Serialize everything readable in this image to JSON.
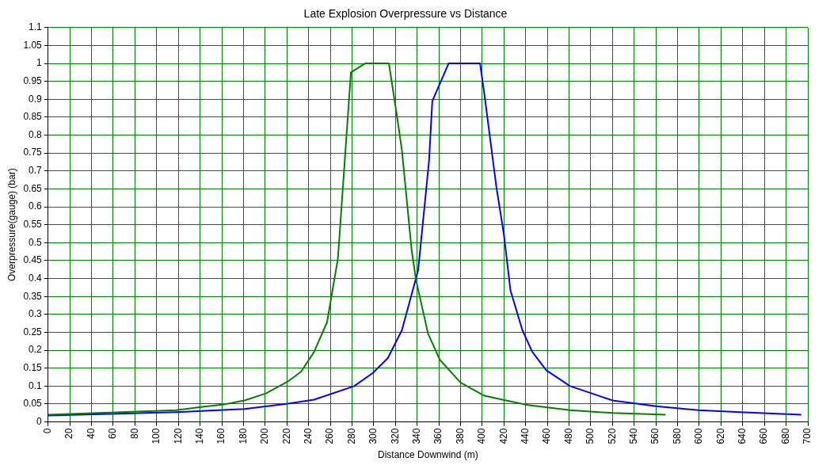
{
  "chart_data": {
    "type": "line",
    "title": "Late Explosion Overpressure vs Distance",
    "xlabel": "Distance Downwind (m)",
    "ylabel": "Overpressure(gauge) (bar)",
    "xlim": [
      0,
      700
    ],
    "xticks": [
      0,
      20,
      40,
      60,
      80,
      100,
      120,
      140,
      160,
      180,
      200,
      220,
      240,
      260,
      280,
      300,
      320,
      340,
      360,
      380,
      400,
      420,
      440,
      460,
      480,
      500,
      520,
      540,
      560,
      580,
      600,
      620,
      640,
      660,
      680,
      700
    ],
    "ylim": [
      0,
      1.1
    ],
    "yticks": [
      0,
      0.05,
      0.1,
      0.15,
      0.2,
      0.25,
      0.3,
      0.35,
      0.4,
      0.45,
      0.5,
      0.55,
      0.6,
      0.65,
      0.7,
      0.75,
      0.8,
      0.85,
      0.9,
      0.95,
      1,
      1.05,
      1.1
    ],
    "grid": true,
    "legend": false,
    "marker": "none",
    "line_style": "solid",
    "series": [
      {
        "color": "#008000",
        "x": [
          0,
          118,
          162,
          181,
          201,
          221,
          233,
          245,
          257,
          267,
          279,
          292,
          314,
          321,
          326,
          335,
          339,
          350,
          361,
          380,
          402,
          422,
          442,
          481,
          520,
          569
        ],
        "values": [
          0.02,
          0.033,
          0.049,
          0.06,
          0.08,
          0.113,
          0.14,
          0.195,
          0.278,
          0.455,
          0.975,
          1.0,
          1.0,
          0.862,
          0.758,
          0.478,
          0.396,
          0.247,
          0.173,
          0.11,
          0.073,
          0.06,
          0.047,
          0.033,
          0.025,
          0.02
        ]
      },
      {
        "color": "#0000ff",
        "x": [
          0,
          118,
          181,
          221,
          245,
          282,
          299,
          313,
          326,
          341,
          351,
          354,
          369,
          398,
          402,
          413,
          420,
          426,
          437,
          446,
          459,
          481,
          520,
          560,
          599,
          638,
          694
        ],
        "values": [
          0.018,
          0.027,
          0.036,
          0.051,
          0.062,
          0.1,
          0.136,
          0.178,
          0.256,
          0.424,
          0.729,
          0.895,
          1.0,
          1.0,
          0.913,
          0.656,
          0.522,
          0.367,
          0.256,
          0.196,
          0.144,
          0.1,
          0.06,
          0.044,
          0.033,
          0.027,
          0.02
        ]
      }
    ]
  }
}
